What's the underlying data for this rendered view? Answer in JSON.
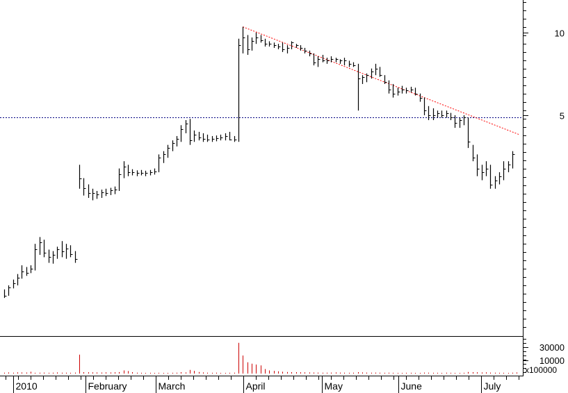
{
  "chart_data": {
    "type": "ohlc",
    "price_scale": "log",
    "y_ticks": [
      {
        "value": 10,
        "label": "10"
      },
      {
        "value": 5,
        "label": "5"
      }
    ],
    "ylim": [
      0.8,
      13.5
    ],
    "x_labels": [
      "2010",
      "February",
      "March",
      "April",
      "May",
      "June",
      "July"
    ],
    "volume_ticks": [
      {
        "value": 30000,
        "label": "30000"
      },
      {
        "value": 10000,
        "label": "10000"
      }
    ],
    "volume_multiplier_label": "x100000",
    "horizontal_line": {
      "value": 4.9,
      "color": "#000080",
      "style": "dotted"
    },
    "trendline": {
      "start_value": 10.5,
      "end_value": 4.25,
      "color": "#ff0000",
      "style": "dotted"
    },
    "bars": [
      [
        1.16,
        1.08,
        1.1
      ],
      [
        1.2,
        1.1,
        1.18
      ],
      [
        1.26,
        1.17,
        1.22
      ],
      [
        1.32,
        1.2,
        1.28
      ],
      [
        1.42,
        1.27,
        1.35
      ],
      [
        1.4,
        1.3,
        1.33
      ],
      [
        1.42,
        1.33,
        1.38
      ],
      [
        1.7,
        1.36,
        1.62
      ],
      [
        1.8,
        1.55,
        1.72
      ],
      [
        1.76,
        1.52,
        1.58
      ],
      [
        1.62,
        1.45,
        1.52
      ],
      [
        1.6,
        1.44,
        1.55
      ],
      [
        1.66,
        1.5,
        1.62
      ],
      [
        1.74,
        1.52,
        1.6
      ],
      [
        1.7,
        1.5,
        1.63
      ],
      [
        1.68,
        1.52,
        1.56
      ],
      [
        1.6,
        1.45,
        1.5
      ],
      [
        3.3,
        2.7,
        2.95
      ],
      [
        2.95,
        2.55,
        2.72
      ],
      [
        2.8,
        2.5,
        2.6
      ],
      [
        2.7,
        2.45,
        2.6
      ],
      [
        2.65,
        2.48,
        2.58
      ],
      [
        2.68,
        2.5,
        2.62
      ],
      [
        2.7,
        2.54,
        2.6
      ],
      [
        2.72,
        2.56,
        2.66
      ],
      [
        2.75,
        2.58,
        2.68
      ],
      [
        3.2,
        2.65,
        3.05
      ],
      [
        3.4,
        2.95,
        3.25
      ],
      [
        3.3,
        3.0,
        3.1
      ],
      [
        3.18,
        3.02,
        3.1
      ],
      [
        3.15,
        3.0,
        3.08
      ],
      [
        3.16,
        3.02,
        3.08
      ],
      [
        3.14,
        3.0,
        3.08
      ],
      [
        3.16,
        3.02,
        3.1
      ],
      [
        3.2,
        3.04,
        3.12
      ],
      [
        3.6,
        3.1,
        3.5
      ],
      [
        3.7,
        3.35,
        3.6
      ],
      [
        3.9,
        3.5,
        3.8
      ],
      [
        4.05,
        3.7,
        3.95
      ],
      [
        4.2,
        3.85,
        4.1
      ],
      [
        4.6,
        4.0,
        4.45
      ],
      [
        4.8,
        4.3,
        4.65
      ],
      [
        4.85,
        3.9,
        4.05
      ],
      [
        4.4,
        4.0,
        4.25
      ],
      [
        4.35,
        4.05,
        4.15
      ],
      [
        4.3,
        4.0,
        4.1
      ],
      [
        4.25,
        4.0,
        4.08
      ],
      [
        4.2,
        4.0,
        4.1
      ],
      [
        4.22,
        4.02,
        4.12
      ],
      [
        4.25,
        4.05,
        4.15
      ],
      [
        4.3,
        4.05,
        4.2
      ],
      [
        4.35,
        4.05,
        4.08
      ],
      [
        4.2,
        4.0,
        4.08
      ],
      [
        9.5,
        4.0,
        9.0
      ],
      [
        10.5,
        8.4,
        9.6
      ],
      [
        9.8,
        8.3,
        8.7
      ],
      [
        9.6,
        8.6,
        9.3
      ],
      [
        10.0,
        9.1,
        9.6
      ],
      [
        9.8,
        9.2,
        9.4
      ],
      [
        9.5,
        8.9,
        9.1
      ],
      [
        9.3,
        8.9,
        9.1
      ],
      [
        9.2,
        8.8,
        9.0
      ],
      [
        9.1,
        8.7,
        8.9
      ],
      [
        9.2,
        8.5,
        8.7
      ],
      [
        9.0,
        8.4,
        8.8
      ],
      [
        9.3,
        8.7,
        9.2
      ],
      [
        9.1,
        8.8,
        9.0
      ],
      [
        9.0,
        8.6,
        8.8
      ],
      [
        8.8,
        8.4,
        8.6
      ],
      [
        8.6,
        8.2,
        8.4
      ],
      [
        8.4,
        7.6,
        7.8
      ],
      [
        8.2,
        7.5,
        8.0
      ],
      [
        8.3,
        7.8,
        7.9
      ],
      [
        8.1,
        7.7,
        7.9
      ],
      [
        8.2,
        7.8,
        8.0
      ],
      [
        8.1,
        7.8,
        8.0
      ],
      [
        8.0,
        7.7,
        7.9
      ],
      [
        8.1,
        7.6,
        7.9
      ],
      [
        7.9,
        7.5,
        7.7
      ],
      [
        7.8,
        7.5,
        7.6
      ],
      [
        7.7,
        5.2,
        6.8
      ],
      [
        7.0,
        6.5,
        6.9
      ],
      [
        7.1,
        6.6,
        7.0
      ],
      [
        7.4,
        6.8,
        7.2
      ],
      [
        7.7,
        7.0,
        7.4
      ],
      [
        7.5,
        6.9,
        7.0
      ],
      [
        7.0,
        6.5,
        6.6
      ],
      [
        6.7,
        6.0,
        6.2
      ],
      [
        6.5,
        5.8,
        6.0
      ],
      [
        6.3,
        5.9,
        6.1
      ],
      [
        6.4,
        6.0,
        6.2
      ],
      [
        6.3,
        6.0,
        6.15
      ],
      [
        6.35,
        6.05,
        6.2
      ],
      [
        6.3,
        5.9,
        6.0
      ],
      [
        6.0,
        5.6,
        5.8
      ],
      [
        5.8,
        5.0,
        5.2
      ],
      [
        5.4,
        4.8,
        5.0
      ],
      [
        5.3,
        4.8,
        5.0
      ],
      [
        5.2,
        4.9,
        5.1
      ],
      [
        5.2,
        4.9,
        5.0
      ],
      [
        5.2,
        4.9,
        5.1
      ],
      [
        5.1,
        4.8,
        4.9
      ],
      [
        5.0,
        4.5,
        4.7
      ],
      [
        4.9,
        4.5,
        4.8
      ],
      [
        5.0,
        4.6,
        4.9
      ],
      [
        4.9,
        3.8,
        4.0
      ],
      [
        3.9,
        3.4,
        3.5
      ],
      [
        3.6,
        3.0,
        3.2
      ],
      [
        3.3,
        2.9,
        3.1
      ],
      [
        3.4,
        3.0,
        3.2
      ],
      [
        3.3,
        2.7,
        2.8
      ],
      [
        3.0,
        2.7,
        2.9
      ],
      [
        3.1,
        2.8,
        3.0
      ],
      [
        3.4,
        2.9,
        3.2
      ],
      [
        3.4,
        3.1,
        3.3
      ],
      [
        3.7,
        3.2,
        3.6
      ]
    ],
    "volumes": [
      200,
      250,
      200,
      260,
      250,
      230,
      400,
      180,
      200,
      220,
      180,
      200,
      250,
      200,
      200,
      180,
      220,
      4200,
      300,
      280,
      260,
      250,
      240,
      260,
      250,
      280,
      320,
      700,
      550,
      300,
      200,
      180,
      150,
      170,
      150,
      180,
      160,
      140,
      180,
      200,
      300,
      250,
      800,
      600,
      350,
      250,
      200,
      180,
      200,
      150,
      160,
      180,
      200,
      6800,
      4000,
      2500,
      2200,
      2000,
      1800,
      1000,
      700,
      600,
      500,
      400,
      350,
      300,
      300,
      280,
      260,
      250,
      240,
      220,
      200,
      200,
      220,
      250,
      220,
      200,
      180,
      200,
      300,
      250,
      220,
      200,
      220,
      200,
      180,
      200,
      180,
      160,
      150,
      180,
      170,
      160,
      150,
      220,
      200,
      180,
      170,
      160,
      200,
      180,
      150,
      160,
      180,
      350,
      300,
      280,
      250,
      260,
      220,
      200,
      180,
      170,
      160,
      200,
      250
    ]
  }
}
